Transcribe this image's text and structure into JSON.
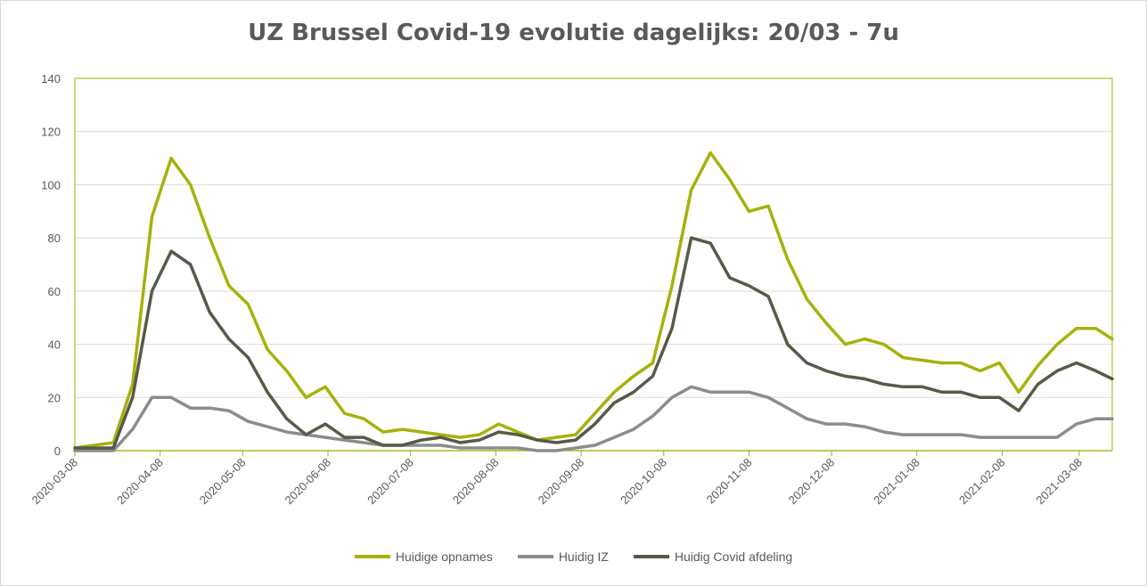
{
  "chart_data": {
    "type": "line",
    "title": "UZ Brussel Covid-19 evolutie dagelijks: 20/03 - 7u",
    "xlabel": "",
    "ylabel": "",
    "ylim": [
      0,
      140
    ],
    "y_ticks": [
      "0",
      "20",
      "40",
      "60",
      "80",
      "100",
      "120",
      "140"
    ],
    "x_tick_labels": [
      "2020-03-08",
      "2020-04-08",
      "2020-05-08",
      "2020-06-08",
      "2020-07-08",
      "2020-08-08",
      "2020-09-08",
      "2020-10-08",
      "2020-11-08",
      "2020-12-08",
      "2021-01-08",
      "2021-02-08",
      "2021-03-08"
    ],
    "x": [
      "2020-03-08",
      "2020-03-15",
      "2020-03-22",
      "2020-03-29",
      "2020-04-05",
      "2020-04-12",
      "2020-04-19",
      "2020-04-26",
      "2020-05-03",
      "2020-05-10",
      "2020-05-17",
      "2020-05-24",
      "2020-05-31",
      "2020-06-07",
      "2020-06-14",
      "2020-06-21",
      "2020-06-28",
      "2020-07-05",
      "2020-07-12",
      "2020-07-19",
      "2020-07-26",
      "2020-08-02",
      "2020-08-09",
      "2020-08-16",
      "2020-08-23",
      "2020-08-30",
      "2020-09-06",
      "2020-09-13",
      "2020-09-20",
      "2020-09-27",
      "2020-10-04",
      "2020-10-11",
      "2020-10-18",
      "2020-10-25",
      "2020-11-01",
      "2020-11-08",
      "2020-11-15",
      "2020-11-22",
      "2020-11-29",
      "2020-12-06",
      "2020-12-13",
      "2020-12-20",
      "2020-12-27",
      "2021-01-03",
      "2021-01-10",
      "2021-01-17",
      "2021-01-24",
      "2021-01-31",
      "2021-02-07",
      "2021-02-14",
      "2021-02-21",
      "2021-02-28",
      "2021-03-07",
      "2021-03-14",
      "2021-03-20"
    ],
    "series": [
      {
        "name": "Huidige opnames",
        "color": "#a5b20b",
        "values": [
          1,
          2,
          3,
          25,
          88,
          110,
          100,
          80,
          62,
          55,
          38,
          30,
          20,
          24,
          14,
          12,
          7,
          8,
          7,
          6,
          5,
          6,
          10,
          7,
          4,
          5,
          6,
          14,
          22,
          28,
          33,
          62,
          98,
          112,
          102,
          90,
          92,
          72,
          57,
          48,
          40,
          42,
          40,
          35,
          34,
          33,
          33,
          30,
          33,
          22,
          32,
          40,
          46,
          46,
          42
        ]
      },
      {
        "name": "Huidig IZ",
        "color": "#8c8c8c",
        "values": [
          0,
          0,
          0,
          8,
          20,
          20,
          16,
          16,
          15,
          11,
          9,
          7,
          6,
          5,
          4,
          3,
          2,
          2,
          2,
          2,
          1,
          1,
          1,
          1,
          0,
          0,
          1,
          2,
          5,
          8,
          13,
          20,
          24,
          22,
          22,
          22,
          20,
          16,
          12,
          10,
          10,
          9,
          7,
          6,
          6,
          6,
          6,
          5,
          5,
          5,
          5,
          5,
          10,
          12,
          12
        ]
      },
      {
        "name": "Huidig Covid afdeling",
        "color": "#575a48",
        "values": [
          1,
          1,
          1,
          20,
          60,
          75,
          70,
          52,
          42,
          35,
          22,
          12,
          6,
          10,
          5,
          5,
          2,
          2,
          4,
          5,
          3,
          4,
          7,
          6,
          4,
          3,
          4,
          10,
          18,
          22,
          28,
          46,
          80,
          78,
          65,
          62,
          58,
          40,
          33,
          30,
          28,
          27,
          25,
          24,
          24,
          22,
          22,
          20,
          20,
          15,
          25,
          30,
          33,
          30,
          27
        ]
      }
    ]
  }
}
